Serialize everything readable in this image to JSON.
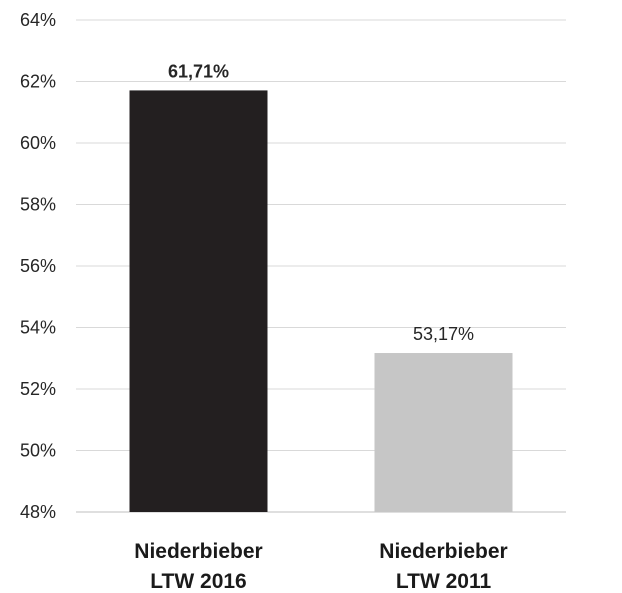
{
  "chart_data": {
    "type": "bar",
    "categories": [
      [
        "Niederbieber",
        "LTW 2016"
      ],
      [
        "Niederbieber",
        "LTW 2011"
      ]
    ],
    "values": [
      61.71,
      53.17
    ],
    "data_labels": [
      "61,71%",
      "53,17%"
    ],
    "data_label_bold": [
      true,
      false
    ],
    "colors": [
      "#231f20",
      "#c6c6c6"
    ],
    "ylim": [
      48,
      64
    ],
    "ytick_step": 2,
    "ytick_labels": [
      "48%",
      "50%",
      "52%",
      "54%",
      "56%",
      "58%",
      "60%",
      "62%",
      "64%"
    ],
    "grid": true,
    "title": "",
    "xlabel": "",
    "ylabel": ""
  }
}
